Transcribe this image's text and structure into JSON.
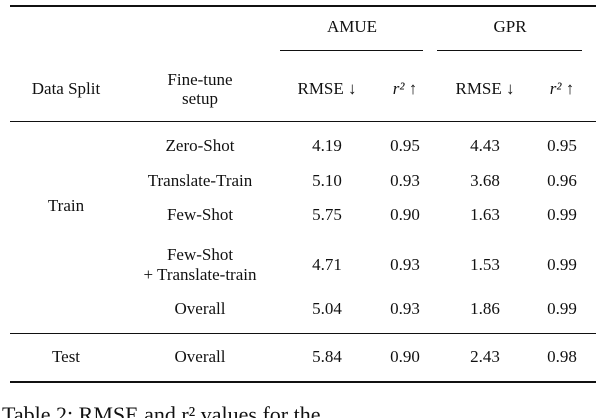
{
  "table": {
    "group_headers": [
      "AMUE",
      "GPR"
    ],
    "headers": [
      "Data Split",
      [
        "Fine-tune",
        "setup"
      ],
      "RMSE ↓",
      "r² ↑",
      "RMSE ↓",
      "r² ↑"
    ],
    "sections": [
      {
        "split": "Train",
        "rows": [
          {
            "setup": [
              "Zero-Shot"
            ],
            "values": [
              "4.19",
              "0.95",
              "4.43",
              "0.95"
            ]
          },
          {
            "setup": [
              "Translate-Train"
            ],
            "values": [
              "5.10",
              "0.93",
              "3.68",
              "0.96"
            ]
          },
          {
            "setup": [
              "Few-Shot"
            ],
            "values": [
              "5.75",
              "0.90",
              "1.63",
              "0.99"
            ]
          },
          {
            "setup": [
              "Few-Shot",
              "+ Translate-train"
            ],
            "values": [
              "4.71",
              "0.93",
              "1.53",
              "0.99"
            ]
          },
          {
            "setup": [
              "Overall"
            ],
            "values": [
              "5.04",
              "0.93",
              "1.86",
              "0.99"
            ]
          }
        ]
      },
      {
        "split": "Test",
        "rows": [
          {
            "setup": [
              "Overall"
            ],
            "values": [
              "5.84",
              "0.90",
              "2.43",
              "0.98"
            ]
          }
        ]
      }
    ]
  },
  "caption": "Table 2: RMSE and r² values for the"
}
